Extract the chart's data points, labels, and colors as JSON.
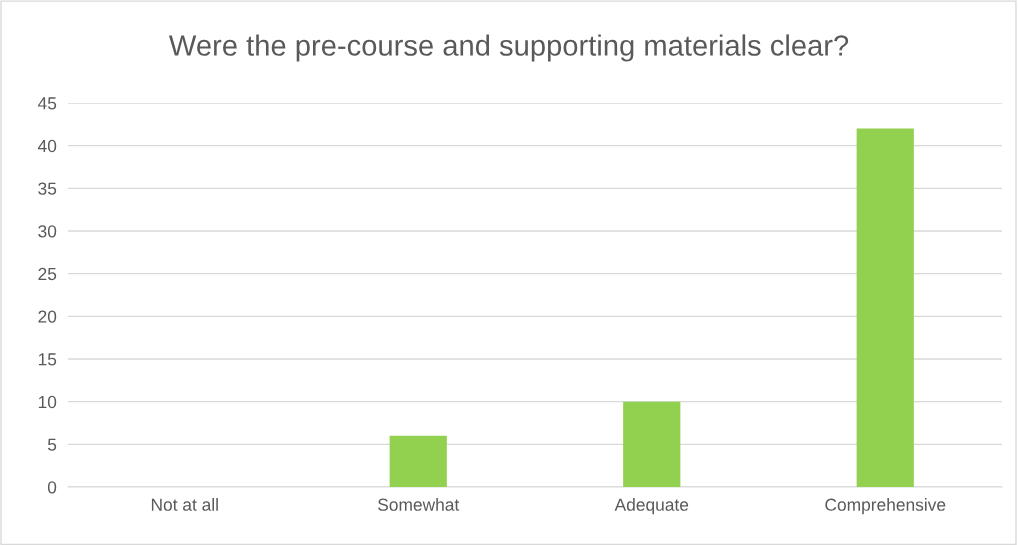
{
  "chart_data": {
    "type": "bar",
    "title": "Were the pre-course and supporting materials clear?",
    "categories": [
      "Not at all",
      "Somewhat",
      "Adequate",
      "Comprehensive"
    ],
    "values": [
      0,
      6,
      10,
      42
    ],
    "color": "#92d050",
    "ylim": [
      0,
      45
    ],
    "yticks": [
      0,
      5,
      10,
      15,
      20,
      25,
      30,
      35,
      40,
      45
    ],
    "grid": "y",
    "legend": false
  }
}
